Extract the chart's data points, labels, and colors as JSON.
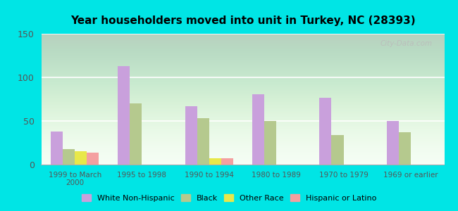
{
  "title": "Year householders moved into unit in Turkey, NC (28393)",
  "categories": [
    "1999 to March\n2000",
    "1995 to 1998",
    "1990 to 1994",
    "1980 to 1989",
    "1970 to 1979",
    "1969 or earlier"
  ],
  "series": {
    "White Non-Hispanic": [
      38,
      113,
      67,
      81,
      77,
      50
    ],
    "Black": [
      18,
      70,
      53,
      50,
      34,
      37
    ],
    "Other Race": [
      15,
      0,
      7,
      0,
      0,
      0
    ],
    "Hispanic or Latino": [
      14,
      0,
      7,
      0,
      0,
      0
    ]
  },
  "colors": {
    "White Non-Hispanic": "#c9a0dc",
    "Black": "#b5c98e",
    "Other Race": "#e8e84a",
    "Hispanic or Latino": "#f4a0a0"
  },
  "ylim": [
    0,
    150
  ],
  "yticks": [
    0,
    50,
    100,
    150
  ],
  "bg_color": "#00e5e5",
  "watermark": "City-Data.com",
  "bar_width": 0.18,
  "legend_entries": [
    "White Non-Hispanic",
    "Black",
    "Other Race",
    "Hispanic or Latino"
  ]
}
